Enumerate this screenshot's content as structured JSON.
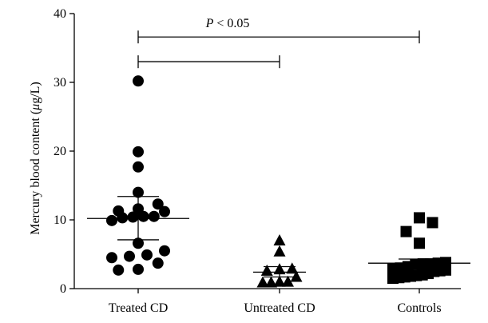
{
  "chart_data": {
    "type": "scatter",
    "ylabel": "Mercury blood content (μg/L)",
    "ylabel_parts": {
      "before": "Mercury blood content (",
      "unit_italic": "μ",
      "after": "g/L)"
    },
    "ylim": [
      0,
      40
    ],
    "yticks": [
      0,
      10,
      20,
      30,
      40
    ],
    "categories": [
      "Treated CD",
      "Untreated CD",
      "Controls"
    ],
    "series": [
      {
        "marker": "circle",
        "values": [
          30.2,
          19.9,
          17.7,
          14.0,
          12.3,
          11.6,
          11.3,
          11.2,
          10.5,
          10.5,
          10.4,
          10.3,
          9.9,
          6.6,
          5.5,
          4.9,
          4.7,
          4.5,
          3.7,
          2.8,
          2.7
        ],
        "mean": 10.2,
        "sem_low": 7.1,
        "sem_high": 13.4
      },
      {
        "marker": "triangle",
        "values": [
          6.9,
          5.3,
          2.8,
          2.7,
          2.5,
          1.6,
          0.9,
          0.9,
          0.8,
          0.8
        ],
        "mean": 2.4,
        "sem_low": 1.7,
        "sem_high": 3.2
      },
      {
        "marker": "square",
        "values": [
          10.3,
          9.6,
          8.3,
          6.6,
          3.8,
          3.7,
          3.6,
          3.6,
          3.5,
          3.2,
          3.0,
          2.9,
          2.7,
          2.6,
          2.5,
          2.2,
          2.0,
          1.9,
          1.8,
          1.7,
          1.6,
          1.5
        ],
        "mean": 3.7,
        "sem_low": 3.0,
        "sem_high": 4.3
      }
    ],
    "annotations": [
      {
        "text_italic": "P",
        "text_rest": " < 0.05",
        "from": 0,
        "to": 2,
        "y": 36.6
      },
      {
        "text_italic": "",
        "text_rest": "",
        "from": 0,
        "to": 1,
        "y": 33.0
      }
    ]
  }
}
